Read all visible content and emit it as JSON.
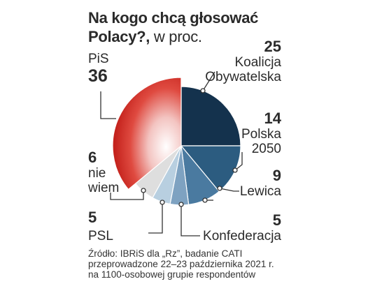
{
  "title": {
    "main": "Na kogo chcą głosować Polacy?,",
    "unit": "w proc."
  },
  "chart_data": {
    "type": "pie",
    "title": "Na kogo chcą głosować Polacy?, w proc.",
    "slices": [
      {
        "label": "Koalicja Obywatelska",
        "value": 25,
        "color": "#14324d"
      },
      {
        "label": "Polska 2050",
        "value": 14,
        "color": "#2c5c80"
      },
      {
        "label": "Lewica",
        "value": 9,
        "color": "#4a7aa0"
      },
      {
        "label": "Konfederacja",
        "value": 5,
        "color": "#7ea2c1"
      },
      {
        "label": "PSL",
        "value": 5,
        "color": "#b8cfe0"
      },
      {
        "label": "nie wiem",
        "value": 6,
        "color": "#dedede"
      },
      {
        "label": "PiS",
        "value": 36,
        "color": "#c92a24"
      }
    ]
  },
  "labels": {
    "ko": {
      "value": "25",
      "name_line1": "Koalicja",
      "name_line2": "Obywatelska"
    },
    "p2050": {
      "value": "14",
      "name_line1": "Polska",
      "name_line2": "2050"
    },
    "lew": {
      "value": "9",
      "name_line1": "Lewica"
    },
    "konf": {
      "value": "5",
      "name_line1": "Konfederacja"
    },
    "psl": {
      "value": "5",
      "name_line1": "PSL"
    },
    "nw": {
      "value": "6",
      "name_line1": "nie",
      "name_line2": "wiem"
    },
    "pis": {
      "name_line1": "PiS",
      "value": "36"
    }
  },
  "source": {
    "line1": "Źródło: IBRiS dla „Rz”, badanie CATI",
    "line2": "przeprowadzone 22–23 października 2021 r.",
    "line3": "na 1100-osobowej grupie respondentów"
  }
}
